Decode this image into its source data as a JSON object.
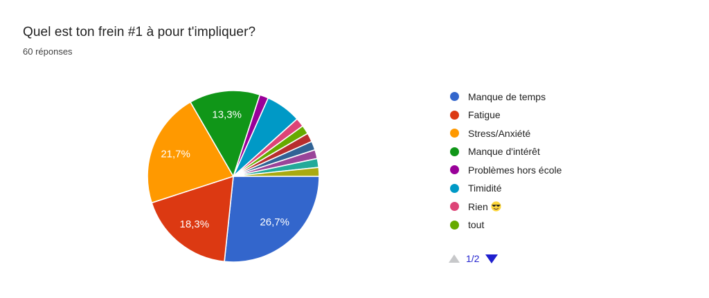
{
  "chart_data": {
    "type": "pie",
    "title": "Quel est ton frein #1 à pour t'impliquer?",
    "subtitle": "60 réponses",
    "total_responses": 60,
    "start_angle_deg": 90,
    "direction": "clockwise",
    "slice_label_color": "#ffffff",
    "slice_separator_color": "#ffffff",
    "legend_position": "right",
    "slices": [
      {
        "legend_label": "Manque de temps",
        "count": 16,
        "percent": 26.7,
        "percent_label": "26,7%",
        "color": "#3366CC"
      },
      {
        "legend_label": "Fatigue",
        "count": 11,
        "percent": 18.3,
        "percent_label": "18,3%",
        "color": "#DC3912"
      },
      {
        "legend_label": "Stress/Anxiété",
        "count": 13,
        "percent": 21.7,
        "percent_label": "21,7%",
        "color": "#FF9900"
      },
      {
        "legend_label": "Manque d'intérêt",
        "count": 8,
        "percent": 13.3,
        "percent_label": "13,3%",
        "color": "#109618"
      },
      {
        "legend_label": "Problèmes hors école",
        "count": 1,
        "percent": 1.7,
        "percent_label": null,
        "color": "#990099"
      },
      {
        "legend_label": "Timidité",
        "count": 4,
        "percent": 6.7,
        "percent_label": null,
        "color": "#0099C6"
      },
      {
        "legend_label": "Rien 😎",
        "count": 1,
        "percent": 1.7,
        "percent_label": null,
        "color": "#DD4477"
      },
      {
        "legend_label": "tout",
        "count": 1,
        "percent": 1.7,
        "percent_label": null,
        "color": "#66AA00"
      },
      {
        "legend_label": null,
        "count": 1,
        "percent": 1.7,
        "percent_label": null,
        "color": "#B82E2E"
      },
      {
        "legend_label": null,
        "count": 1,
        "percent": 1.7,
        "percent_label": null,
        "color": "#316395"
      },
      {
        "legend_label": null,
        "count": 1,
        "percent": 1.7,
        "percent_label": null,
        "color": "#994499"
      },
      {
        "legend_label": null,
        "count": 1,
        "percent": 1.7,
        "percent_label": null,
        "color": "#22AA99"
      },
      {
        "legend_label": null,
        "count": 1,
        "percent": 1.7,
        "percent_label": null,
        "color": "#AAAA11"
      }
    ],
    "legend_pagination": {
      "page_label": "1/2",
      "up_arrow_color": "#c7c8ca",
      "down_arrow_color": "#1f1fce",
      "page_label_color": "#1f1fce"
    }
  }
}
